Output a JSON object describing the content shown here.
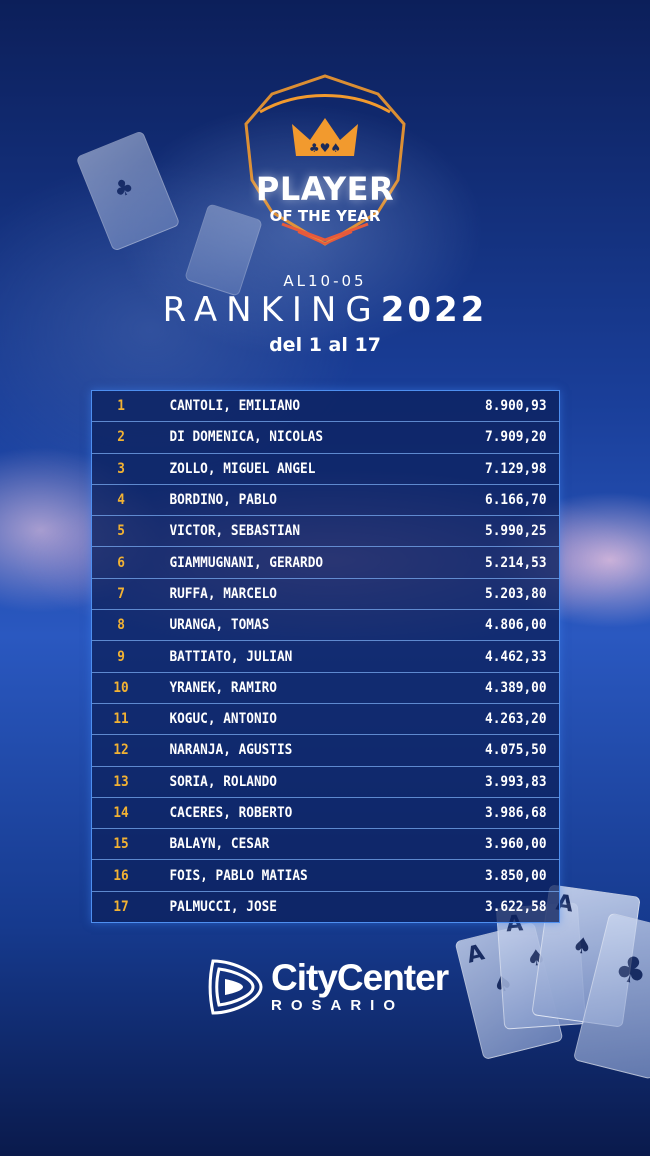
{
  "logo": {
    "title": "PLAYER",
    "subtitle": "OF THE YEAR",
    "accent_color": "#f29a2e"
  },
  "header": {
    "date_prefix": "AL",
    "date": "10-05",
    "ranking_word": "RANKING",
    "year": "2022",
    "range": "del 1 al 17"
  },
  "ranking": [
    {
      "pos": "1",
      "name": "CANTOLI, EMILIANO",
      "points": "8.900,93"
    },
    {
      "pos": "2",
      "name": "DI DOMENICA, NICOLAS",
      "points": "7.909,20"
    },
    {
      "pos": "3",
      "name": "ZOLLO, MIGUEL ANGEL",
      "points": "7.129,98"
    },
    {
      "pos": "4",
      "name": "BORDINO, PABLO",
      "points": "6.166,70"
    },
    {
      "pos": "5",
      "name": "VICTOR, SEBASTIAN",
      "points": "5.990,25"
    },
    {
      "pos": "6",
      "name": "GIAMMUGNANI, GERARDO",
      "points": "5.214,53"
    },
    {
      "pos": "7",
      "name": "RUFFA, MARCELO",
      "points": "5.203,80"
    },
    {
      "pos": "8",
      "name": "URANGA, TOMAS",
      "points": "4.806,00"
    },
    {
      "pos": "9",
      "name": "BATTIATO, JULIAN",
      "points": "4.462,33"
    },
    {
      "pos": "10",
      "name": "YRANEK, RAMIRO",
      "points": "4.389,00"
    },
    {
      "pos": "11",
      "name": "KOGUC, ANTONIO",
      "points": "4.263,20"
    },
    {
      "pos": "12",
      "name": "NARANJA, AGUSTIS",
      "points": "4.075,50"
    },
    {
      "pos": "13",
      "name": "SORIA, ROLANDO",
      "points": "3.993,83"
    },
    {
      "pos": "14",
      "name": "CACERES, ROBERTO",
      "points": "3.986,68"
    },
    {
      "pos": "15",
      "name": "BALAYN, CESAR",
      "points": "3.960,00"
    },
    {
      "pos": "16",
      "name": "FOIS, PABLO MATIAS",
      "points": "3.850,00"
    },
    {
      "pos": "17",
      "name": "PALMUCCI, JOSE",
      "points": "3.622,58"
    }
  ],
  "colors": {
    "position_number": "#f2b233",
    "table_border": "#4e8ff0"
  },
  "footer": {
    "brand": "CityCenter",
    "city": "ROSARIO"
  }
}
